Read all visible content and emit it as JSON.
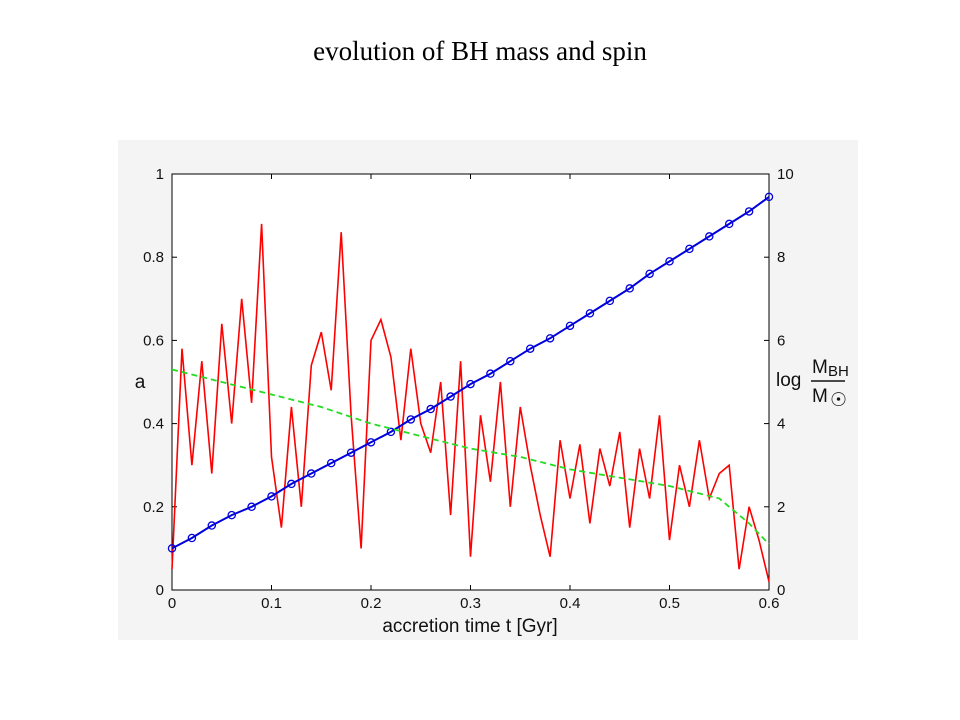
{
  "title": "evolution of BH mass and spin",
  "chart_data": {
    "type": "line",
    "title": "evolution of BH mass and spin",
    "xlabel": "accretion time t [Gyr]",
    "ylabel_left": "a",
    "ylabel_right": {
      "prefix": "log",
      "numerator": "M",
      "numerator_sub": "BH",
      "denominator": "M",
      "denominator_sub": "☉"
    },
    "xlim": [
      0,
      0.6
    ],
    "ylim_left": [
      0,
      1
    ],
    "ylim_right": [
      0,
      10
    ],
    "x_ticks": [
      "0",
      "0.1",
      "0.2",
      "0.3",
      "0.4",
      "0.5",
      "0.6"
    ],
    "y_ticks_left": [
      "0",
      "0.2",
      "0.4",
      "0.6",
      "0.8",
      "1"
    ],
    "y_ticks_right": [
      "0",
      "2",
      "4",
      "6",
      "8",
      "10"
    ],
    "grid": false,
    "colors": {
      "spin": "#ff0000",
      "mass": "#0000dd",
      "trend": "#22dd22"
    },
    "series": [
      {
        "axis": "left",
        "style": "solid",
        "color": "#ff0000",
        "x": [
          0,
          0.01,
          0.02,
          0.03,
          0.04,
          0.05,
          0.06,
          0.07,
          0.08,
          0.09,
          0.1,
          0.11,
          0.12,
          0.13,
          0.14,
          0.15,
          0.16,
          0.17,
          0.18,
          0.19,
          0.2,
          0.21,
          0.22,
          0.23,
          0.24,
          0.25,
          0.26,
          0.27,
          0.28,
          0.29,
          0.3,
          0.31,
          0.32,
          0.33,
          0.34,
          0.35,
          0.36,
          0.37,
          0.38,
          0.39,
          0.4,
          0.41,
          0.42,
          0.43,
          0.44,
          0.45,
          0.46,
          0.47,
          0.48,
          0.49,
          0.5,
          0.51,
          0.52,
          0.53,
          0.54,
          0.55,
          0.56,
          0.57,
          0.58,
          0.59,
          0.6
        ],
        "y": [
          0.05,
          0.58,
          0.3,
          0.55,
          0.28,
          0.64,
          0.4,
          0.7,
          0.45,
          0.88,
          0.32,
          0.15,
          0.44,
          0.2,
          0.54,
          0.62,
          0.48,
          0.86,
          0.42,
          0.1,
          0.6,
          0.65,
          0.56,
          0.36,
          0.58,
          0.4,
          0.33,
          0.5,
          0.18,
          0.55,
          0.08,
          0.42,
          0.26,
          0.5,
          0.2,
          0.44,
          0.3,
          0.18,
          0.08,
          0.36,
          0.22,
          0.35,
          0.16,
          0.34,
          0.25,
          0.38,
          0.15,
          0.34,
          0.22,
          0.42,
          0.12,
          0.3,
          0.2,
          0.36,
          0.22,
          0.28,
          0.3,
          0.05,
          0.2,
          0.12,
          0.02
        ]
      },
      {
        "axis": "right",
        "style": "line-markers",
        "marker": "circle",
        "color": "#0000dd",
        "x": [
          0,
          0.02,
          0.04,
          0.06,
          0.08,
          0.1,
          0.12,
          0.14,
          0.16,
          0.18,
          0.2,
          0.22,
          0.24,
          0.26,
          0.28,
          0.3,
          0.32,
          0.34,
          0.36,
          0.38,
          0.4,
          0.42,
          0.44,
          0.46,
          0.48,
          0.5,
          0.52,
          0.54,
          0.56,
          0.58,
          0.6
        ],
        "y": [
          1.0,
          1.25,
          1.55,
          1.8,
          2.0,
          2.25,
          2.55,
          2.8,
          3.05,
          3.3,
          3.55,
          3.8,
          4.1,
          4.35,
          4.65,
          4.95,
          5.2,
          5.5,
          5.8,
          6.05,
          6.35,
          6.65,
          6.95,
          7.25,
          7.6,
          7.9,
          8.2,
          8.5,
          8.8,
          9.1,
          9.45
        ]
      },
      {
        "axis": "left",
        "style": "dashed",
        "color": "#22dd22",
        "x": [
          0,
          0.05,
          0.1,
          0.15,
          0.2,
          0.25,
          0.3,
          0.35,
          0.4,
          0.45,
          0.5,
          0.55,
          0.58,
          0.6
        ],
        "y": [
          0.53,
          0.5,
          0.47,
          0.44,
          0.4,
          0.37,
          0.34,
          0.32,
          0.29,
          0.27,
          0.25,
          0.22,
          0.16,
          0.11
        ]
      }
    ]
  }
}
